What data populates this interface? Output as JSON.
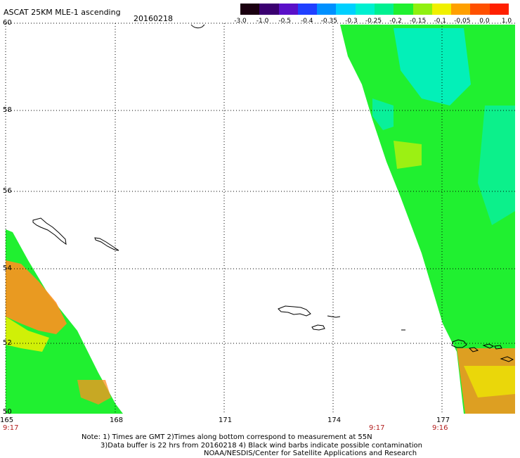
{
  "header": {
    "title": "ASCAT 25KM MLE-1 ascending",
    "date": "20160218"
  },
  "colorbar": {
    "labels": [
      "-3.0",
      "-1.0",
      "-0.5",
      "-0.4",
      "-0.35",
      "-0.3",
      "-0.25",
      "-0.2",
      "-0.15",
      "-0.1",
      "-0.05",
      "0.0",
      "1.0"
    ],
    "colors": [
      "#1a0010",
      "#3a0070",
      "#5a10c8",
      "#2040ff",
      "#0090ff",
      "#00d0ff",
      "#00f0d0",
      "#00f090",
      "#20f030",
      "#90f010",
      "#f0f000",
      "#ffa000",
      "#ff5000",
      "#ff2000"
    ]
  },
  "axes": {
    "lat_labels": [
      "60",
      "58",
      "56",
      "54",
      "52",
      "50"
    ],
    "lon_labels": [
      "165",
      "168",
      "171",
      "174",
      "177"
    ]
  },
  "times": [
    "9:17",
    "9:17",
    "9:16"
  ],
  "notes": {
    "line1": "Note: 1) Times are GMT 2)Times along bottom correspond to measurement at 55N",
    "line2": "3)Data buffer is 22 hrs from 20160218 4) Black wind barbs indicate possible contamination",
    "line3": "NOAA/NESDIS/Center for Satellite Applications and Research"
  },
  "colors": {
    "swath_green": "#20f030",
    "swath_orange": "#ff9020",
    "swath_cyan": "#00f0c8",
    "swath_yellow": "#f0f000"
  }
}
